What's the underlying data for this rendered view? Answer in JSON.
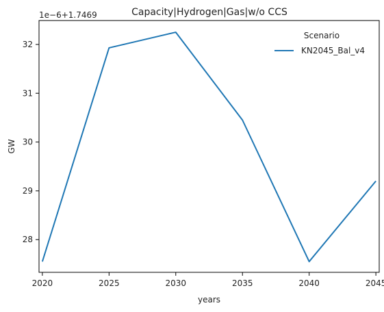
{
  "chart_data": {
    "type": "line",
    "title": "Capacity|Hydrogen|Gas|w/o CCS",
    "xlabel": "years",
    "ylabel": "GW",
    "offset_text": "1e−6+1.7469",
    "x": [
      2020,
      2025,
      2030,
      2035,
      2040,
      2045
    ],
    "x_ticks": [
      "2020",
      "2025",
      "2030",
      "2035",
      "2040",
      "2045"
    ],
    "y_ticks": [
      "28",
      "29",
      "30",
      "31",
      "32"
    ],
    "y_tick_values": [
      28,
      29,
      30,
      31,
      32
    ],
    "xlim": [
      2019.75,
      2045.25
    ],
    "ylim": [
      27.33,
      32.49
    ],
    "grid": false,
    "legend": {
      "title": "Scenario",
      "placement": "upper-right"
    },
    "series": [
      {
        "name": "KN2045_Bal_v4",
        "color": "#1f77b4",
        "values": [
          27.55,
          31.93,
          32.25,
          30.45,
          27.55,
          29.2
        ]
      }
    ]
  }
}
